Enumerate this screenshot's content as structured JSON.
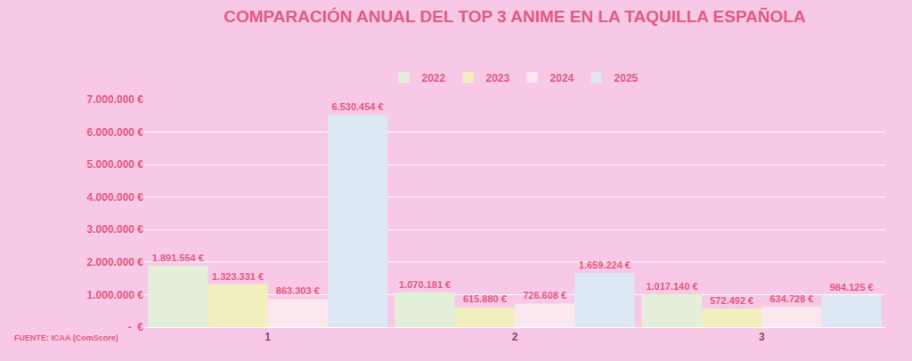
{
  "chart_data": {
    "type": "bar",
    "title": "COMPARACIÓN ANUAL DEL TOP 3 ANIME EN LA TAQUILLA ESPAÑOLA",
    "source": "FUENTE: ICAA (ComScore)",
    "categories": [
      "1",
      "2",
      "3"
    ],
    "series": [
      {
        "name": "2022",
        "color": "#e3efd8",
        "values": [
          1891554,
          1070181,
          1017140
        ],
        "value_labels": [
          "1.891.554 €",
          "1.070.181 €",
          "1.017.140 €"
        ]
      },
      {
        "name": "2023",
        "color": "#f2efbf",
        "values": [
          1323331,
          615880,
          572492
        ],
        "value_labels": [
          "1.323.331 €",
          "615.880 €",
          "572.492 €"
        ]
      },
      {
        "name": "2024",
        "color": "#fbe8ee",
        "values": [
          863303,
          726608,
          634728
        ],
        "value_labels": [
          "863.303 €",
          "726.608 €",
          "634.728 €"
        ]
      },
      {
        "name": "2025",
        "color": "#dde8f4",
        "values": [
          6530454,
          1659224,
          984125
        ],
        "value_labels": [
          "6.530.454 €",
          "1.659.224 €",
          "984.125 €"
        ]
      }
    ],
    "ylim": [
      0,
      7000000
    ],
    "yticks": [
      {
        "value": 0,
        "label": "-  €"
      },
      {
        "value": 1000000,
        "label": "1.000.000 €"
      },
      {
        "value": 2000000,
        "label": "2.000.000 €"
      },
      {
        "value": 3000000,
        "label": "3.000.000 €"
      },
      {
        "value": 4000000,
        "label": "4.000.000 €"
      },
      {
        "value": 5000000,
        "label": "5.000.000 €"
      },
      {
        "value": 6000000,
        "label": "6.000.000 €"
      },
      {
        "value": 7000000,
        "label": "7.000.000 €"
      }
    ],
    "grid": true,
    "legend": "top",
    "data_labels": true
  }
}
